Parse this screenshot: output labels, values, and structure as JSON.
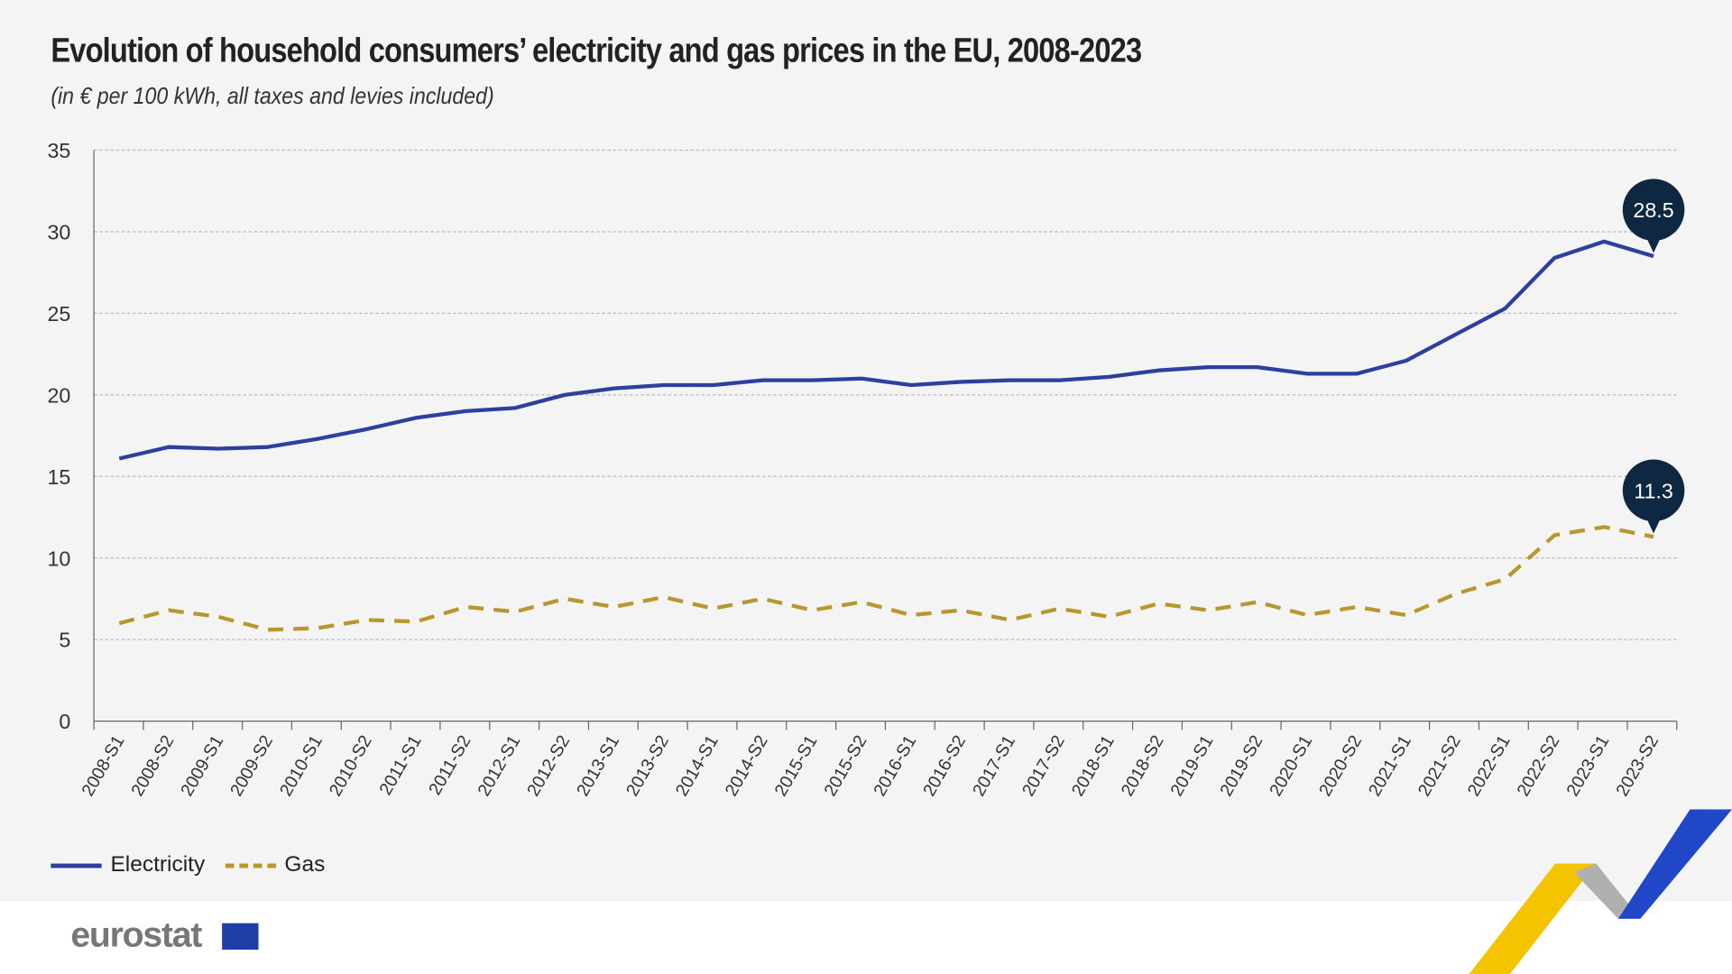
{
  "title": "Evolution of household consumers’ electricity and gas prices in the EU, 2008-2023",
  "subtitle": "(in € per 100 kWh, all taxes and levies included)",
  "brand": "eurostat",
  "colors": {
    "electricity": "#2d409f",
    "gas": "#b8972f",
    "callout": "#0e2841",
    "background": "#f4f4f4"
  },
  "chart_data": {
    "type": "line",
    "title": "Evolution of household consumers’ electricity and gas prices in the EU, 2008-2023",
    "subtitle": "(in € per 100 kWh, all taxes and levies included)",
    "ylim": [
      0,
      35
    ],
    "yticks": [
      "0",
      "5",
      "10",
      "15",
      "20",
      "25",
      "30",
      "35"
    ],
    "grid": true,
    "legend_position": "bottom-left",
    "categories": [
      "2008-S1",
      "2008-S2",
      "2009-S1",
      "2009-S2",
      "2010-S1",
      "2010-S2",
      "2011-S1",
      "2011-S2",
      "2012-S1",
      "2012-S2",
      "2013-S1",
      "2013-S2",
      "2014-S1",
      "2014-S2",
      "2015-S1",
      "2015-S2",
      "2016-S1",
      "2016-S2",
      "2017-S1",
      "2017-S2",
      "2018-S1",
      "2018-S2",
      "2019-S1",
      "2019-S2",
      "2020-S1",
      "2020-S2",
      "2021-S1",
      "2021-S2",
      "2022-S1",
      "2022-S2",
      "2023-S1",
      "2023-S2"
    ],
    "series": [
      {
        "name": "Electricity",
        "style": "solid",
        "values": [
          16.1,
          16.8,
          16.7,
          16.8,
          17.3,
          17.9,
          18.6,
          19.0,
          19.2,
          20.0,
          20.4,
          20.6,
          20.6,
          20.9,
          20.9,
          21.0,
          20.6,
          20.8,
          20.9,
          20.9,
          21.1,
          21.5,
          21.7,
          21.7,
          21.3,
          21.3,
          22.1,
          23.7,
          25.3,
          28.4,
          29.4,
          28.5
        ],
        "callout": "28.5"
      },
      {
        "name": "Gas",
        "style": "dashed",
        "values": [
          6.0,
          6.8,
          6.4,
          5.6,
          5.7,
          6.2,
          6.1,
          7.0,
          6.7,
          7.5,
          7.0,
          7.6,
          6.9,
          7.5,
          6.8,
          7.3,
          6.5,
          6.8,
          6.2,
          6.9,
          6.4,
          7.2,
          6.8,
          7.3,
          6.5,
          7.0,
          6.5,
          7.8,
          8.7,
          11.4,
          11.9,
          11.3
        ],
        "callout": "11.3"
      }
    ]
  }
}
